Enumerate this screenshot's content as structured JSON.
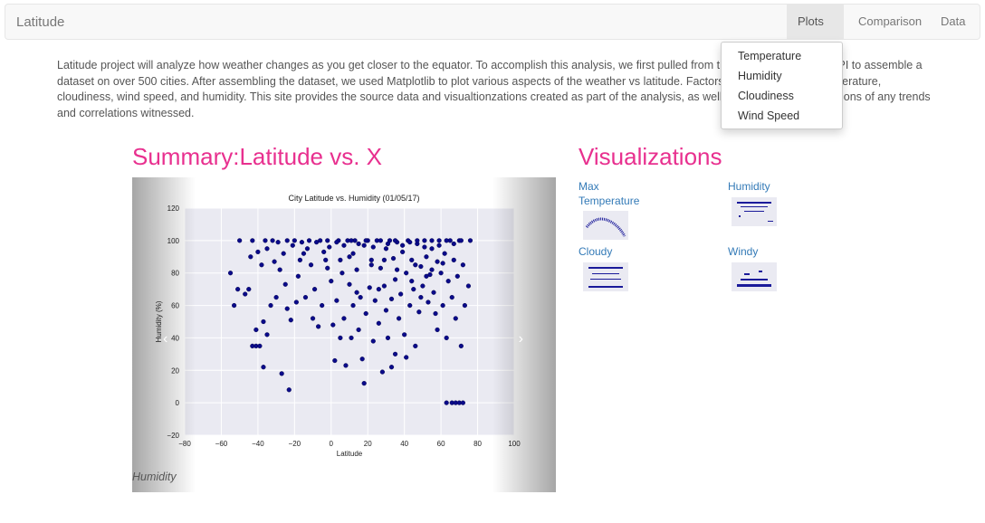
{
  "navbar": {
    "brand": "Latitude",
    "items": {
      "plots": "Plots",
      "comparison": "Comparison",
      "data": "Data"
    }
  },
  "dropdown": [
    "Temperature",
    "Humidity",
    "Cloudiness",
    "Wind Speed"
  ],
  "intro": "Latitude project will analyze how weather changes as you get closer to the equator. To accomplish this analysis, we first pulled from the OpenWeatherMap API to assemble a dataset on over 500 cities. After assembling the dataset, we used Matplotlib to plot various aspects of the weather vs latitude. Factors that were plotted: temperature, cloudiness, wind speed, and humidity. This site provides the source data and visualtionzations created as part of the analysis, as well as graphs with descriptions of any trends and correlations witnessed.",
  "summary": {
    "heading": "Summary:Latitude vs. X",
    "caption": "Humidity"
  },
  "visualizations": {
    "heading": "Visualizations",
    "items": [
      "Max Temperature",
      "Humidity",
      "Cloudy",
      "Windy"
    ]
  },
  "colors": {
    "accent": "#e8308f",
    "link": "#337ab7",
    "marker": "#0a0a8a"
  },
  "chart_data": {
    "type": "scatter",
    "title": "City Latitude vs. Humidity (01/05/17)",
    "xlabel": "Latitude",
    "ylabel": "Humidity (%)",
    "xlim": [
      -80,
      100
    ],
    "ylim": [
      -20,
      120
    ],
    "xticks": [
      "−80",
      "−60",
      "−40",
      "−20",
      "0",
      "20",
      "40",
      "60",
      "80",
      "100"
    ],
    "yticks": [
      "−20",
      "0",
      "20",
      "40",
      "60",
      "80",
      "100",
      "120"
    ],
    "grid": true,
    "points": [
      [
        -55,
        80
      ],
      [
        -53,
        60
      ],
      [
        -51,
        70
      ],
      [
        -47,
        67
      ],
      [
        -45,
        70
      ],
      [
        -44,
        90
      ],
      [
        -43,
        100
      ],
      [
        -43,
        35
      ],
      [
        -41,
        35
      ],
      [
        -41,
        45
      ],
      [
        -40,
        93
      ],
      [
        -39,
        35
      ],
      [
        -38,
        85
      ],
      [
        -37,
        50
      ],
      [
        -37,
        22
      ],
      [
        -35,
        42
      ],
      [
        -35,
        95
      ],
      [
        -33,
        60
      ],
      [
        -31,
        87
      ],
      [
        -30,
        65
      ],
      [
        -28,
        82
      ],
      [
        -27,
        18
      ],
      [
        -26,
        92
      ],
      [
        -25,
        73
      ],
      [
        -24,
        58
      ],
      [
        -23,
        8
      ],
      [
        -22,
        51
      ],
      [
        -21,
        97
      ],
      [
        -20,
        100
      ],
      [
        -18,
        78
      ],
      [
        -17,
        88
      ],
      [
        -15,
        92
      ],
      [
        -14,
        65
      ],
      [
        -12,
        100
      ],
      [
        -11,
        85
      ],
      [
        -9,
        70
      ],
      [
        -8,
        99
      ],
      [
        -7,
        47
      ],
      [
        -5,
        60
      ],
      [
        -4,
        93
      ],
      [
        -3,
        88
      ],
      [
        -2,
        100
      ],
      [
        0,
        75
      ],
      [
        1,
        48
      ],
      [
        2,
        26
      ],
      [
        3,
        63
      ],
      [
        4,
        100
      ],
      [
        5,
        88
      ],
      [
        6,
        80
      ],
      [
        7,
        52
      ],
      [
        8,
        23
      ],
      [
        9,
        100
      ],
      [
        10,
        73
      ],
      [
        11,
        40
      ],
      [
        12,
        60
      ],
      [
        12,
        92
      ],
      [
        13,
        100
      ],
      [
        14,
        82
      ],
      [
        15,
        45
      ],
      [
        16,
        65
      ],
      [
        17,
        27
      ],
      [
        18,
        97
      ],
      [
        19,
        55
      ],
      [
        20,
        100
      ],
      [
        21,
        71
      ],
      [
        22,
        88
      ],
      [
        23,
        38
      ],
      [
        24,
        63
      ],
      [
        25,
        100
      ],
      [
        26,
        49
      ],
      [
        27,
        83
      ],
      [
        28,
        19
      ],
      [
        29,
        72
      ],
      [
        30,
        95
      ],
      [
        30,
        57
      ],
      [
        31,
        40
      ],
      [
        32,
        100
      ],
      [
        33,
        64
      ],
      [
        34,
        89
      ],
      [
        35,
        30
      ],
      [
        35,
        76
      ],
      [
        36,
        99
      ],
      [
        37,
        52
      ],
      [
        38,
        67
      ],
      [
        39,
        93
      ],
      [
        40,
        42
      ],
      [
        41,
        80
      ],
      [
        42,
        100
      ],
      [
        43,
        60
      ],
      [
        44,
        88
      ],
      [
        45,
        70
      ],
      [
        46,
        35
      ],
      [
        47,
        98
      ],
      [
        48,
        56
      ],
      [
        49,
        84
      ],
      [
        50,
        72
      ],
      [
        51,
        100
      ],
      [
        52,
        90
      ],
      [
        53,
        62
      ],
      [
        54,
        79
      ],
      [
        55,
        95
      ],
      [
        56,
        68
      ],
      [
        57,
        55
      ],
      [
        58,
        87
      ],
      [
        59,
        100
      ],
      [
        60,
        80
      ],
      [
        61,
        60
      ],
      [
        62,
        92
      ],
      [
        63,
        40
      ],
      [
        63,
        0
      ],
      [
        64,
        75
      ],
      [
        65,
        100
      ],
      [
        66,
        0
      ],
      [
        66,
        65
      ],
      [
        67,
        88
      ],
      [
        68,
        0
      ],
      [
        68,
        52
      ],
      [
        69,
        78
      ],
      [
        70,
        0
      ],
      [
        70,
        100
      ],
      [
        71,
        35
      ],
      [
        72,
        0
      ],
      [
        72,
        85
      ],
      [
        73,
        60
      ],
      [
        75,
        72
      ],
      [
        76,
        100
      ],
      [
        -50,
        100
      ],
      [
        -36,
        100
      ],
      [
        -32,
        100
      ],
      [
        -29,
        99
      ],
      [
        -24,
        100
      ],
      [
        -16,
        99
      ],
      [
        -13,
        95
      ],
      [
        -6,
        100
      ],
      [
        -1,
        96
      ],
      [
        3,
        99
      ],
      [
        7,
        97
      ],
      [
        11,
        100
      ],
      [
        15,
        98
      ],
      [
        19,
        100
      ],
      [
        23,
        96
      ],
      [
        27,
        100
      ],
      [
        31,
        98
      ],
      [
        35,
        100
      ],
      [
        39,
        97
      ],
      [
        43,
        99
      ],
      [
        47,
        100
      ],
      [
        51,
        96
      ],
      [
        55,
        100
      ],
      [
        59,
        97
      ],
      [
        63,
        100
      ],
      [
        67,
        98
      ],
      [
        71,
        100
      ],
      [
        5,
        40
      ],
      [
        18,
        12
      ],
      [
        33,
        22
      ],
      [
        41,
        28
      ],
      [
        46,
        85
      ],
      [
        58,
        45
      ],
      [
        -10,
        52
      ],
      [
        -19,
        62
      ],
      [
        26,
        70
      ],
      [
        14,
        68
      ],
      [
        36,
        82
      ],
      [
        49,
        65
      ],
      [
        52,
        78
      ],
      [
        61,
        86
      ],
      [
        22,
        85
      ],
      [
        10,
        90
      ],
      [
        -2,
        83
      ],
      [
        44,
        75
      ],
      [
        29,
        88
      ],
      [
        55,
        82
      ]
    ]
  }
}
